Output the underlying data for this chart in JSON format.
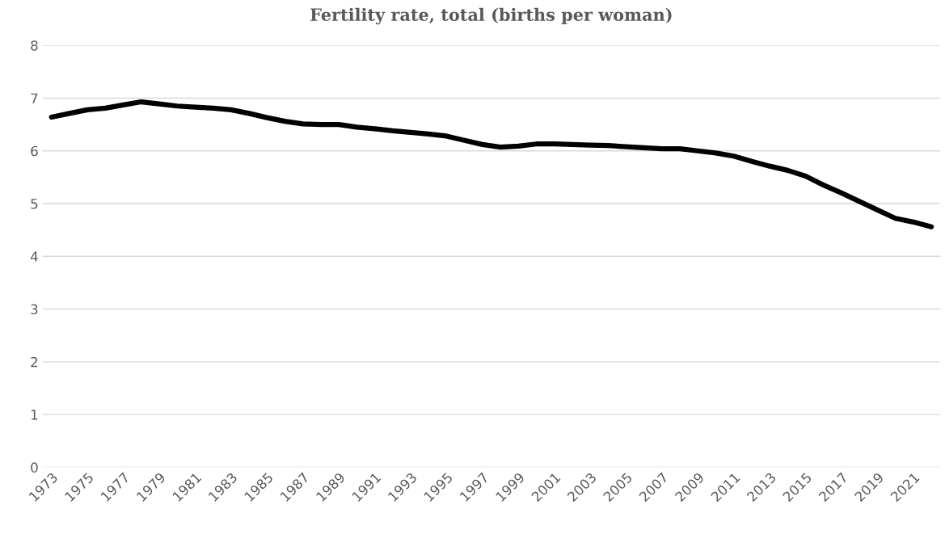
{
  "chart_data": {
    "type": "line",
    "title": "Fertility rate, total (births per woman)",
    "categories": [
      "1973",
      null,
      "1975",
      null,
      "1977",
      null,
      "1979",
      null,
      "1981",
      null,
      "1983",
      null,
      "1985",
      null,
      "1987",
      null,
      "1989",
      null,
      "1991",
      null,
      "1993",
      null,
      "1995",
      null,
      "1997",
      null,
      "1999",
      null,
      "2001",
      null,
      "2003",
      null,
      "2005",
      null,
      "2007",
      null,
      "2009",
      null,
      "2011",
      null,
      "2013",
      null,
      "2015",
      null,
      "2017",
      null,
      "2019",
      null,
      "2021",
      null
    ],
    "series": [
      {
        "color": "#000000",
        "values": [
          6.64,
          6.71,
          6.78,
          6.81,
          6.87,
          6.93,
          6.89,
          6.85,
          6.83,
          6.81,
          6.78,
          6.71,
          6.63,
          6.56,
          6.51,
          6.5,
          6.5,
          6.45,
          6.42,
          6.38,
          6.35,
          6.32,
          6.28,
          6.2,
          6.12,
          6.07,
          6.09,
          6.13,
          6.13,
          6.12,
          6.11,
          6.1,
          6.08,
          6.06,
          6.04,
          6.04,
          6.0,
          5.96,
          5.9,
          5.8,
          5.71,
          5.63,
          5.52,
          5.35,
          5.2,
          5.04,
          4.88,
          4.72,
          4.65,
          4.56
        ]
      }
    ],
    "ylim": [
      0,
      8
    ],
    "yticks": [
      0,
      1,
      2,
      3,
      4,
      5,
      6,
      7,
      8
    ],
    "grid": "y",
    "marker": "none",
    "line_style": "solid"
  }
}
